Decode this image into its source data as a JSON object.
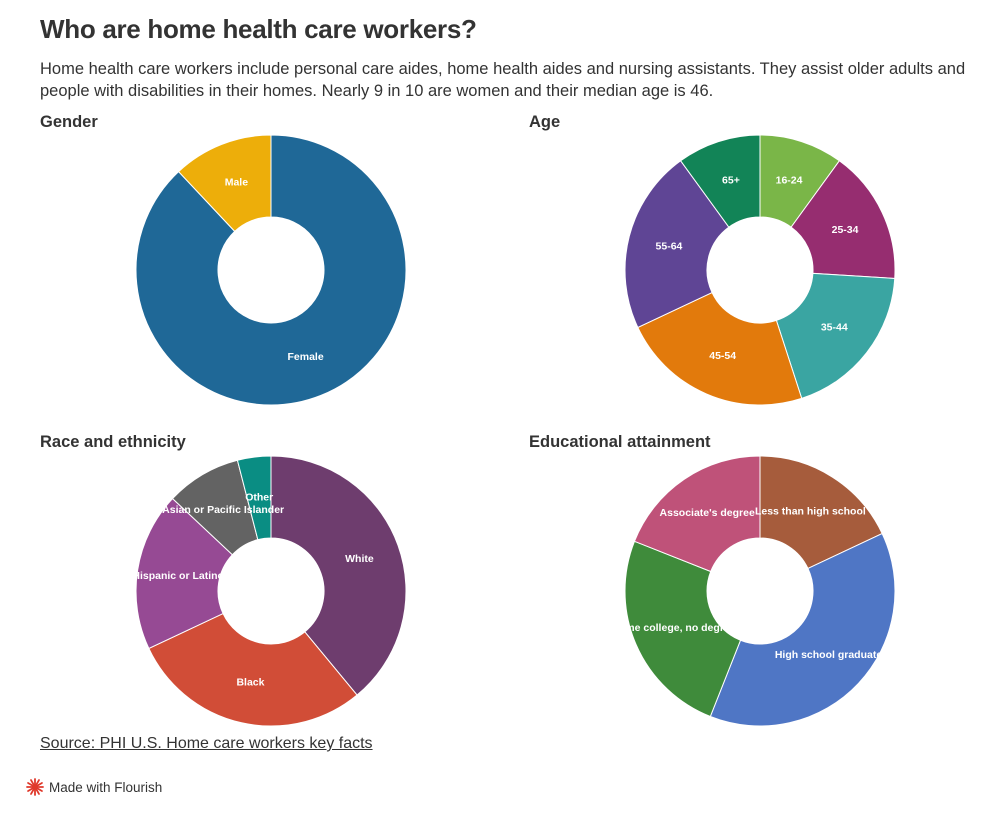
{
  "title": "Who are home health care workers?",
  "subtitle": "Home health care workers include personal care aides, home health aides and nursing assistants. They assist older adults and people with disabilities in their homes. Nearly 9 in 10 are women and their median age is 46.",
  "source": {
    "label": "Source: PHI U.S. Home care workers key facts"
  },
  "footer": {
    "label": "Made with Flourish",
    "logo_color": "#e0392b"
  },
  "chart_data": [
    {
      "type": "pie",
      "donut": true,
      "title": "Gender",
      "categories": [
        "Female",
        "Male"
      ],
      "values": [
        88,
        12
      ],
      "colors": [
        "#1f6897",
        "#edae0a"
      ]
    },
    {
      "type": "pie",
      "donut": true,
      "title": "Age",
      "categories": [
        "16-24",
        "25-34",
        "35-44",
        "45-54",
        "55-64",
        "65+"
      ],
      "values": [
        10,
        16,
        19,
        23,
        22,
        10
      ],
      "colors": [
        "#7ab648",
        "#962d70",
        "#3aa5a2",
        "#e27a0c",
        "#5f4595",
        "#128457"
      ]
    },
    {
      "type": "pie",
      "donut": true,
      "title": "Race and ethnicity",
      "categories": [
        "White",
        "Black",
        "Hispanic or Latino",
        "Asian or Pacific Islander",
        "Other"
      ],
      "values": [
        39,
        29,
        19,
        9,
        4
      ],
      "colors": [
        "#6e3d6e",
        "#d14d37",
        "#964a94",
        "#636363",
        "#0a8d83"
      ]
    },
    {
      "type": "pie",
      "donut": true,
      "title": "Educational attainment",
      "categories": [
        "Less than high school",
        "High school graduate",
        "Some college, no degree",
        "Associate's degree"
      ],
      "values": [
        18,
        38,
        25,
        19
      ],
      "colors": [
        "#a65c3c",
        "#4f76c5",
        "#3f8b3b",
        "#bf5279"
      ]
    }
  ]
}
